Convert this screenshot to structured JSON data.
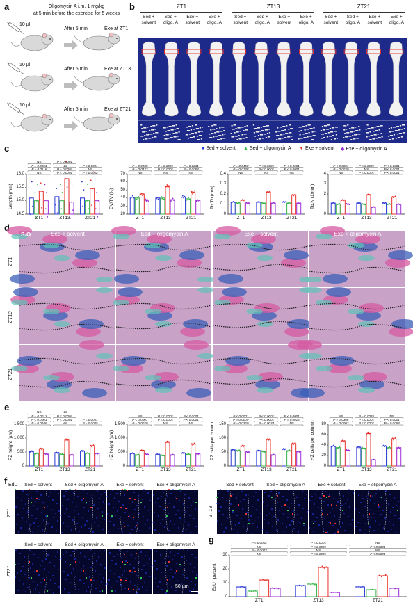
{
  "panels": {
    "a": "a",
    "b": "b",
    "c": "c",
    "d": "d",
    "e": "e",
    "f": "f",
    "g": "g"
  },
  "panel_a": {
    "header_line1": "Oligomycin A i.m. 1 mg/kg",
    "header_line2": "at 5 min before the exercise for 5 weeks",
    "rows": [
      {
        "dose": "10 µl",
        "after": "After 5 min",
        "exe": "Exe at ZT1"
      },
      {
        "dose": "10 µl",
        "after": "After 5 min",
        "exe": "Exe at ZT13"
      },
      {
        "dose": "10 µl",
        "after": "After 5 min",
        "exe": "Exe at ZT21"
      }
    ]
  },
  "panel_b": {
    "zt_groups": [
      "ZT1",
      "ZT13",
      "ZT21"
    ],
    "columns": [
      [
        "Sed +",
        "solvent"
      ],
      [
        "Sed +",
        "oligo. A"
      ],
      [
        "Exe +",
        "solvent"
      ],
      [
        "Exe +",
        "oligo. A"
      ]
    ]
  },
  "legend": {
    "items": [
      {
        "label": "Sed + solvent",
        "color": "#2b3bd6",
        "marker": "■"
      },
      {
        "label": "Sed + oligomycin A",
        "color": "#39b54a",
        "marker": "▲"
      },
      {
        "label": "Exe + solvent",
        "color": "#e8302a",
        "marker": "▼"
      },
      {
        "label": "Exe + oligomycin A",
        "color": "#9b30d8",
        "marker": "◆"
      }
    ]
  },
  "panel_d": {
    "stain": "S-O",
    "columns": [
      "Sed + solvent",
      "Sed + oligomycin A",
      "Exe + solvent",
      "Exe + oligomycin A"
    ],
    "rows": [
      "ZT1",
      "ZT13",
      "ZT21"
    ]
  },
  "panel_f": {
    "stain": "EdU",
    "columns": [
      "Sed + solvent",
      "Sed + oligomycin A",
      "Exe + solvent",
      "Exe + oligomycin A"
    ],
    "groups": [
      "ZT1",
      "ZT13",
      "ZT21"
    ],
    "scale": "50 µm"
  },
  "chart_data": [
    {
      "id": "c1",
      "type": "bar",
      "ylabel": "Length (mm)",
      "ylim": [
        14.5,
        16.0
      ],
      "yticks": [
        "14.5",
        "15.0",
        "15.5",
        "16.0"
      ],
      "categories": [
        "ZT1",
        "ZT13",
        "ZT21"
      ],
      "series": [
        {
          "name": "Sed + solvent",
          "values": [
            15.1,
            15.15,
            15.1
          ]
        },
        {
          "name": "Sed + oligomycin A",
          "values": [
            15.0,
            15.0,
            15.0
          ]
        },
        {
          "name": "Exe + solvent",
          "values": [
            15.35,
            15.82,
            15.45
          ]
        },
        {
          "name": "Exe + oligomycin A",
          "values": [
            15.0,
            14.95,
            15.0
          ]
        }
      ],
      "annotations": [
        "NS",
        "P = 0.0116",
        "P = 0.0001",
        "NS",
        "P < 0.0001",
        "P = 0.0001",
        "NS",
        "P < 0.0001",
        "P = 0.0002",
        "NS",
        "P < 0.0001"
      ]
    },
    {
      "id": "c2",
      "type": "bar",
      "ylabel": "BV/TV (%)",
      "ylim": [
        20,
        70
      ],
      "yticks": [
        "20",
        "30",
        "40",
        "50",
        "60",
        "70"
      ],
      "categories": [
        "ZT1",
        "ZT13",
        "ZT21"
      ],
      "series": [
        {
          "name": "Sed + solvent",
          "values": [
            41,
            40,
            41
          ]
        },
        {
          "name": "Sed + oligomycin A",
          "values": [
            40,
            40,
            39
          ]
        },
        {
          "name": "Exe + solvent",
          "values": [
            45,
            54,
            47
          ]
        },
        {
          "name": "Exe + oligomycin A",
          "values": [
            37,
            38,
            37
          ]
        }
      ],
      "annotations": [
        "NS",
        "P = 0.0423",
        "P = 0.0038",
        "NS",
        "P < 0.0001",
        "P = 0.0001",
        "NS",
        "P = 0.0058",
        "P = 0.0231"
      ]
    },
    {
      "id": "c3",
      "type": "bar",
      "ylabel": "Tb.Th (mm)",
      "ylim": [
        0.0,
        0.4
      ],
      "yticks": [
        "0",
        "0.1",
        "0.2",
        "0.3",
        "0.4"
      ],
      "categories": [
        "ZT1",
        "ZT13",
        "ZT21"
      ],
      "series": [
        {
          "name": "Sed + solvent",
          "values": [
            0.12,
            0.12,
            0.12
          ]
        },
        {
          "name": "Sed + oligomycin A",
          "values": [
            0.11,
            0.11,
            0.11
          ]
        },
        {
          "name": "Exe + solvent",
          "values": [
            0.14,
            0.22,
            0.19
          ]
        },
        {
          "name": "Exe + oligomycin A",
          "values": [
            0.11,
            0.11,
            0.11
          ]
        }
      ],
      "annotations": [
        "NS",
        "P = 0.0138",
        "P = 0.0458",
        "NS",
        "P < 0.0001",
        "P < 0.0001",
        "NS",
        "P < 0.0001",
        "P < 0.0001"
      ]
    },
    {
      "id": "c4",
      "type": "bar",
      "ylabel": "Tb.N (1/mm)",
      "ylim": [
        0,
        4
      ],
      "yticks": [
        "0",
        "1",
        "2",
        "3",
        "4"
      ],
      "categories": [
        "ZT1",
        "ZT13",
        "ZT21"
      ],
      "series": [
        {
          "name": "Sed + solvent",
          "values": [
            1.1,
            1.1,
            1.1
          ]
        },
        {
          "name": "Sed + oligomycin A",
          "values": [
            1.0,
            1.0,
            1.0
          ]
        },
        {
          "name": "Exe + solvent",
          "values": [
            1.4,
            1.9,
            1.7
          ]
        },
        {
          "name": "Exe + oligomycin A",
          "values": [
            1.0,
            0.7,
            1.0
          ]
        }
      ],
      "annotations": [
        "NS",
        "P = 0.0020",
        "P < 0.0001",
        "P < 0.0001",
        "NS",
        "P < 0.0001",
        "P < 0.0001",
        "P < 0.0001",
        "P < 0.0001"
      ]
    },
    {
      "id": "e1",
      "type": "bar",
      "ylabel": "PZ height (µm)",
      "ylim": [
        0,
        1500
      ],
      "yticks": [
        "0",
        "500",
        "1,000",
        "1,500"
      ],
      "categories": [
        "ZT1",
        "ZT13",
        "ZT21"
      ],
      "series": [
        {
          "name": "Sed + solvent",
          "values": [
            520,
            480,
            530
          ]
        },
        {
          "name": "Sed + oligomycin A",
          "values": [
            450,
            420,
            460
          ]
        },
        {
          "name": "Exe + solvent",
          "values": [
            620,
            930,
            720
          ]
        },
        {
          "name": "Exe + oligomycin A",
          "values": [
            430,
            400,
            450
          ]
        }
      ],
      "annotations": [
        "P = 0.0186",
        "P < 0.0001",
        "P = 0.0013",
        "NS",
        "NS",
        "P < 0.0001",
        "P < 0.0001",
        "NS",
        "P = 0.0025",
        "P < 0.0001"
      ]
    },
    {
      "id": "e2",
      "type": "bar",
      "ylabel": "HZ height (µm)",
      "ylim": [
        0,
        1500
      ],
      "yticks": [
        "0",
        "500",
        "1,000",
        "1,500"
      ],
      "categories": [
        "ZT1",
        "ZT13",
        "ZT21"
      ],
      "series": [
        {
          "name": "Sed + solvent",
          "values": [
            450,
            420,
            460
          ]
        },
        {
          "name": "Sed + oligomycin A",
          "values": [
            400,
            380,
            420
          ]
        },
        {
          "name": "Exe + solvent",
          "values": [
            560,
            850,
            780
          ]
        },
        {
          "name": "Exe + oligomycin A",
          "values": [
            420,
            400,
            440
          ]
        }
      ],
      "annotations": [
        "P = 0.0020",
        "P < 0.0001",
        "NS",
        "NS",
        "P < 0.0001",
        "P < 0.0001",
        "NS",
        "P < 0.0001",
        "P < 0.0001"
      ]
    },
    {
      "id": "e3",
      "type": "bar",
      "ylabel": "PZ cells per column",
      "ylim": [
        0,
        150
      ],
      "yticks": [
        "0",
        "50",
        "100",
        "150"
      ],
      "categories": [
        "ZT1",
        "ZT13",
        "ZT21"
      ],
      "series": [
        {
          "name": "Sed + solvent",
          "values": [
            58,
            55,
            60
          ]
        },
        {
          "name": "Sed + oligomycin A",
          "values": [
            55,
            52,
            55
          ]
        },
        {
          "name": "Exe + solvent",
          "values": [
            72,
            95,
            80
          ]
        },
        {
          "name": "Exe + oligomycin A",
          "values": [
            50,
            40,
            52
          ]
        }
      ],
      "annotations": [
        "P = 0.0320",
        "P = 0.0009",
        "P < 0.0001",
        "P = 0.0034",
        "P < 0.0001",
        "P < 0.0001",
        "NS",
        "P = 0.0013",
        "P < 0.0001"
      ]
    },
    {
      "id": "e4",
      "type": "bar",
      "ylabel": "HZ cells per column",
      "ylim": [
        0,
        80
      ],
      "yticks": [
        "0",
        "20",
        "40",
        "60",
        "80"
      ],
      "categories": [
        "ZT1",
        "ZT13",
        "ZT21"
      ],
      "series": [
        {
          "name": "Sed + solvent",
          "values": [
            38,
            36,
            38
          ]
        },
        {
          "name": "Sed + oligomycin A",
          "values": [
            35,
            34,
            35
          ]
        },
        {
          "name": "Exe + solvent",
          "values": [
            48,
            62,
            52
          ]
        },
        {
          "name": "Exe + oligomycin A",
          "values": [
            30,
            12,
            35
          ]
        }
      ],
      "annotations": [
        "P = 0.0002",
        "P = 0.0308",
        "NS",
        "P < 0.0001",
        "P < 0.0001",
        "P = 0.0045",
        "P = 0.0058",
        "P < 0.0001",
        "NS"
      ]
    },
    {
      "id": "g",
      "type": "bar",
      "ylabel": "EdU⁺ percent",
      "ylim": [
        0,
        30
      ],
      "yticks": [
        "0",
        "10",
        "20",
        "30"
      ],
      "categories": [
        "ZT1",
        "ZT13",
        "ZT21"
      ],
      "series": [
        {
          "name": "Sed + solvent",
          "values": [
            7,
            8,
            7
          ]
        },
        {
          "name": "Sed + oligomycin A",
          "values": [
            4,
            9,
            5
          ]
        },
        {
          "name": "Exe + solvent",
          "values": [
            12,
            21,
            15
          ]
        },
        {
          "name": "Exe + oligomycin A",
          "values": [
            6,
            3,
            6
          ]
        }
      ],
      "annotations": [
        "NS",
        "P = 0.0003",
        "NS",
        "P = 0.0002",
        "P < 0.0001",
        "NS",
        "P < 0.0001",
        "P < 0.0001",
        "P < 0.0001",
        "NS",
        "P < 0.0001",
        "NS"
      ]
    }
  ]
}
